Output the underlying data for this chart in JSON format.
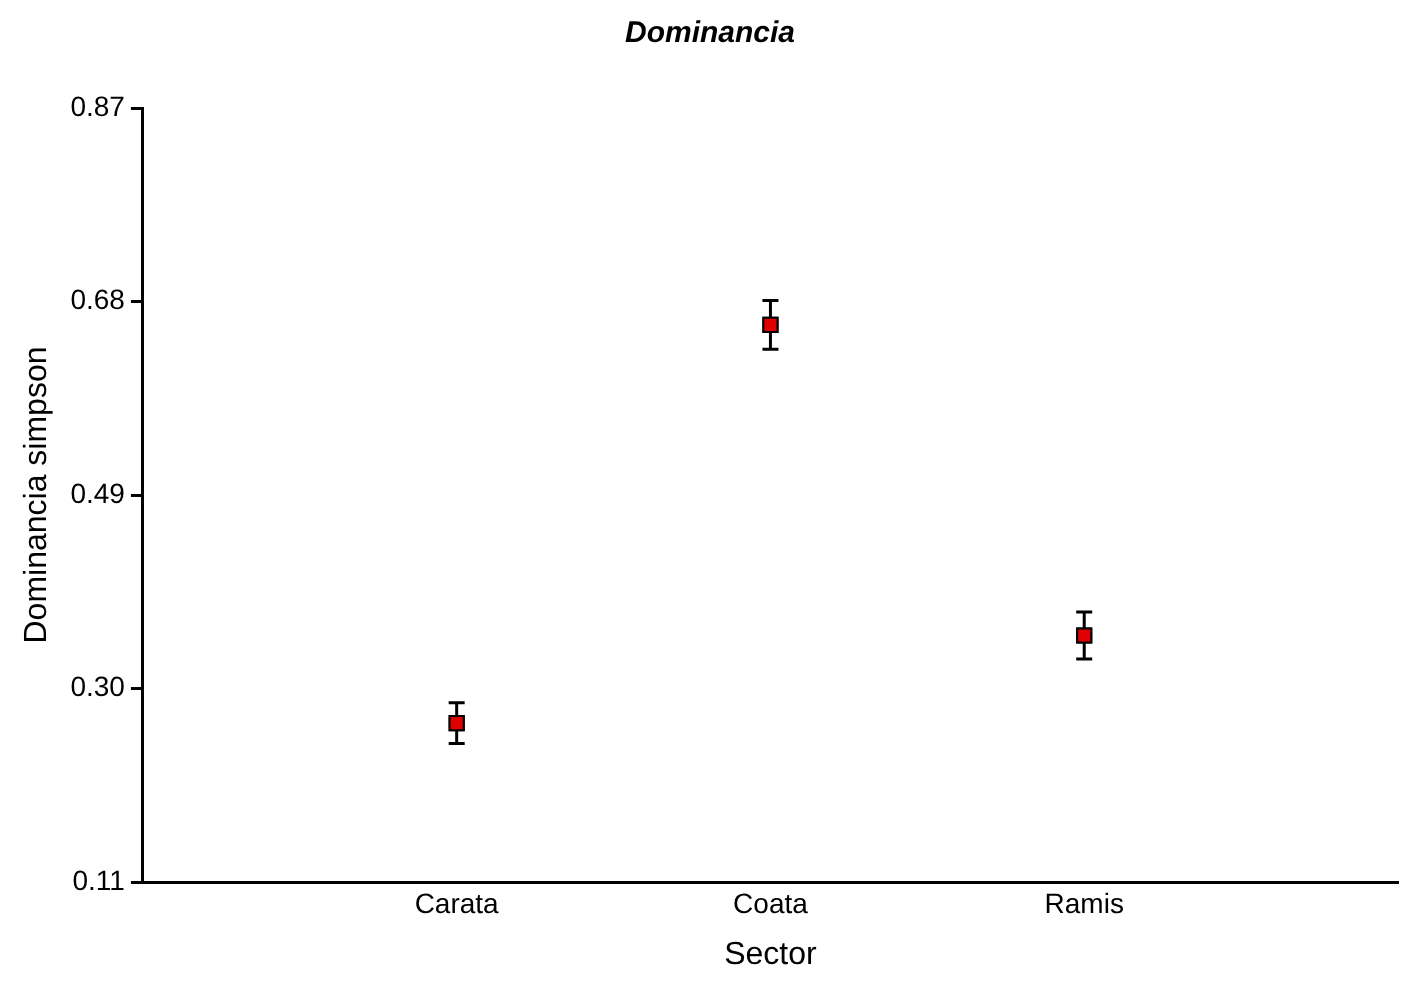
{
  "chart_data": {
    "type": "scatter",
    "title": "Dominancia",
    "xlabel": "Sector",
    "ylabel": "Dominancia simpson",
    "categories": [
      "Carata",
      "Coata",
      "Ramis"
    ],
    "series": [
      {
        "color": "#e00000",
        "values": [
          0.266,
          0.657,
          0.352
        ],
        "errors": [
          0.02,
          0.024,
          0.023
        ]
      }
    ],
    "ylim": [
      0.11,
      0.87
    ],
    "yticks": [
      0.11,
      {
        "value": 0.3,
        "label": "0.30"
      },
      0.49,
      0.68,
      0.87
    ],
    "grid": false,
    "legend": false,
    "marker": "square"
  }
}
